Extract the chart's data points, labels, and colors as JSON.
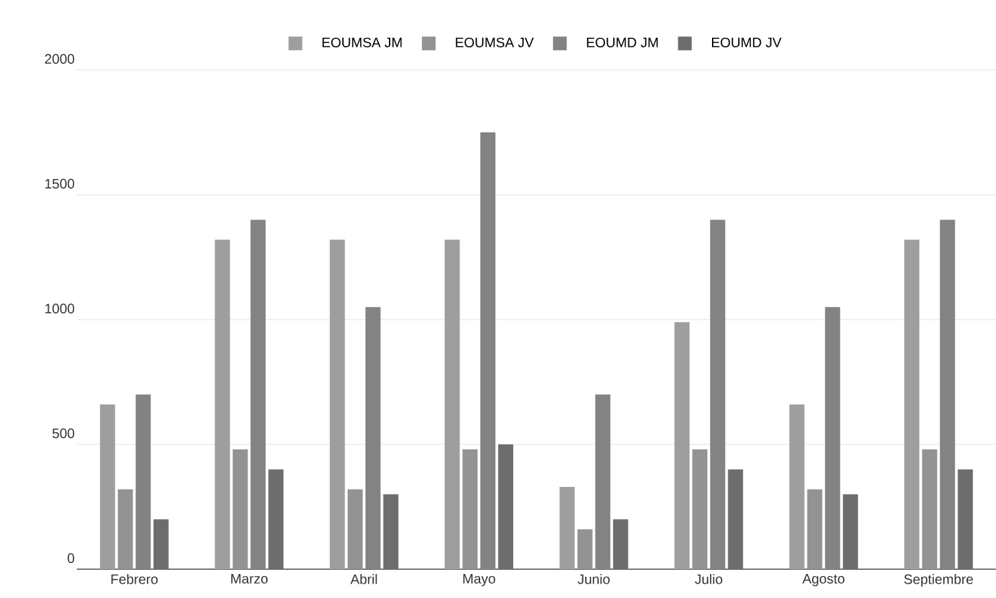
{
  "chart_data": {
    "type": "bar",
    "categories": [
      "Febrero",
      "Marzo",
      "Abril",
      "Mayo",
      "Junio",
      "Julio",
      "Agosto",
      "Septiembre"
    ],
    "series": [
      {
        "name": "EOUMSA JM",
        "color": "#9e9e9e",
        "values": [
          660,
          1320,
          1320,
          1320,
          330,
          990,
          660,
          1320
        ]
      },
      {
        "name": "EOUMSA JV",
        "color": "#939393",
        "values": [
          320,
          480,
          320,
          480,
          160,
          480,
          320,
          480
        ]
      },
      {
        "name": "EOUMD JM",
        "color": "#838383",
        "values": [
          700,
          1400,
          1050,
          1750,
          700,
          1400,
          1050,
          1400
        ]
      },
      {
        "name": "EOUMD JV",
        "color": "#6d6d6d",
        "values": [
          200,
          400,
          300,
          500,
          200,
          400,
          300,
          400
        ]
      }
    ],
    "ylim": [
      0,
      2000
    ],
    "yticks": [
      0,
      500,
      1000,
      1500,
      2000
    ],
    "grid": "y",
    "legend": "top"
  }
}
